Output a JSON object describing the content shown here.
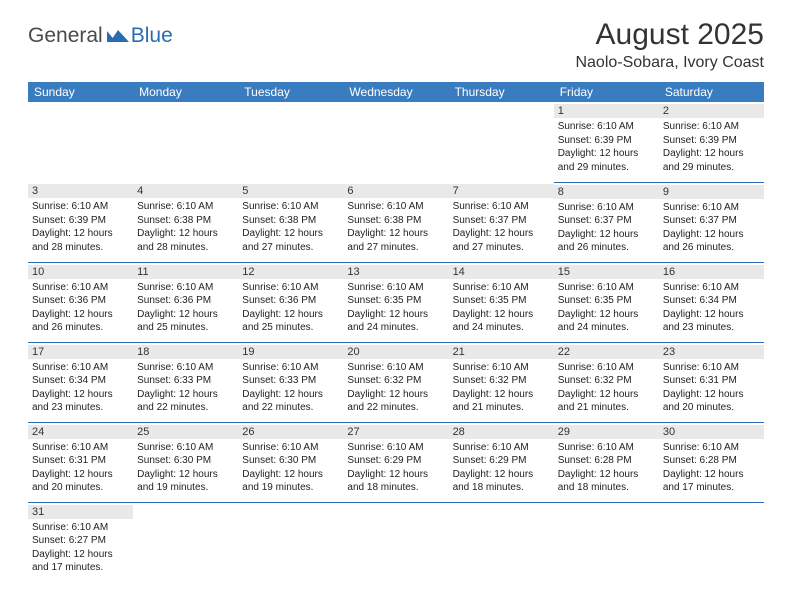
{
  "logo": {
    "text1": "General",
    "text2": "Blue"
  },
  "title": "August 2025",
  "location": "Naolo-Sobara, Ivory Coast",
  "colors": {
    "header_bg": "#3a7cc0",
    "header_text": "#ffffff",
    "cell_border": "#2a6cb3",
    "daynum_bg": "#e9e9e9",
    "logo_accent": "#2a6cb3"
  },
  "weekdays": [
    "Sunday",
    "Monday",
    "Tuesday",
    "Wednesday",
    "Thursday",
    "Friday",
    "Saturday"
  ],
  "weeks": [
    [
      {
        "blank": true
      },
      {
        "blank": true
      },
      {
        "blank": true
      },
      {
        "blank": true
      },
      {
        "blank": true
      },
      {
        "day": "1",
        "sunrise": "Sunrise: 6:10 AM",
        "sunset": "Sunset: 6:39 PM",
        "daylight": "Daylight: 12 hours and 29 minutes."
      },
      {
        "day": "2",
        "sunrise": "Sunrise: 6:10 AM",
        "sunset": "Sunset: 6:39 PM",
        "daylight": "Daylight: 12 hours and 29 minutes."
      }
    ],
    [
      {
        "day": "3",
        "sunrise": "Sunrise: 6:10 AM",
        "sunset": "Sunset: 6:39 PM",
        "daylight": "Daylight: 12 hours and 28 minutes."
      },
      {
        "day": "4",
        "sunrise": "Sunrise: 6:10 AM",
        "sunset": "Sunset: 6:38 PM",
        "daylight": "Daylight: 12 hours and 28 minutes."
      },
      {
        "day": "5",
        "sunrise": "Sunrise: 6:10 AM",
        "sunset": "Sunset: 6:38 PM",
        "daylight": "Daylight: 12 hours and 27 minutes."
      },
      {
        "day": "6",
        "sunrise": "Sunrise: 6:10 AM",
        "sunset": "Sunset: 6:38 PM",
        "daylight": "Daylight: 12 hours and 27 minutes."
      },
      {
        "day": "7",
        "sunrise": "Sunrise: 6:10 AM",
        "sunset": "Sunset: 6:37 PM",
        "daylight": "Daylight: 12 hours and 27 minutes."
      },
      {
        "day": "8",
        "sunrise": "Sunrise: 6:10 AM",
        "sunset": "Sunset: 6:37 PM",
        "daylight": "Daylight: 12 hours and 26 minutes."
      },
      {
        "day": "9",
        "sunrise": "Sunrise: 6:10 AM",
        "sunset": "Sunset: 6:37 PM",
        "daylight": "Daylight: 12 hours and 26 minutes."
      }
    ],
    [
      {
        "day": "10",
        "sunrise": "Sunrise: 6:10 AM",
        "sunset": "Sunset: 6:36 PM",
        "daylight": "Daylight: 12 hours and 26 minutes."
      },
      {
        "day": "11",
        "sunrise": "Sunrise: 6:10 AM",
        "sunset": "Sunset: 6:36 PM",
        "daylight": "Daylight: 12 hours and 25 minutes."
      },
      {
        "day": "12",
        "sunrise": "Sunrise: 6:10 AM",
        "sunset": "Sunset: 6:36 PM",
        "daylight": "Daylight: 12 hours and 25 minutes."
      },
      {
        "day": "13",
        "sunrise": "Sunrise: 6:10 AM",
        "sunset": "Sunset: 6:35 PM",
        "daylight": "Daylight: 12 hours and 24 minutes."
      },
      {
        "day": "14",
        "sunrise": "Sunrise: 6:10 AM",
        "sunset": "Sunset: 6:35 PM",
        "daylight": "Daylight: 12 hours and 24 minutes."
      },
      {
        "day": "15",
        "sunrise": "Sunrise: 6:10 AM",
        "sunset": "Sunset: 6:35 PM",
        "daylight": "Daylight: 12 hours and 24 minutes."
      },
      {
        "day": "16",
        "sunrise": "Sunrise: 6:10 AM",
        "sunset": "Sunset: 6:34 PM",
        "daylight": "Daylight: 12 hours and 23 minutes."
      }
    ],
    [
      {
        "day": "17",
        "sunrise": "Sunrise: 6:10 AM",
        "sunset": "Sunset: 6:34 PM",
        "daylight": "Daylight: 12 hours and 23 minutes."
      },
      {
        "day": "18",
        "sunrise": "Sunrise: 6:10 AM",
        "sunset": "Sunset: 6:33 PM",
        "daylight": "Daylight: 12 hours and 22 minutes."
      },
      {
        "day": "19",
        "sunrise": "Sunrise: 6:10 AM",
        "sunset": "Sunset: 6:33 PM",
        "daylight": "Daylight: 12 hours and 22 minutes."
      },
      {
        "day": "20",
        "sunrise": "Sunrise: 6:10 AM",
        "sunset": "Sunset: 6:32 PM",
        "daylight": "Daylight: 12 hours and 22 minutes."
      },
      {
        "day": "21",
        "sunrise": "Sunrise: 6:10 AM",
        "sunset": "Sunset: 6:32 PM",
        "daylight": "Daylight: 12 hours and 21 minutes."
      },
      {
        "day": "22",
        "sunrise": "Sunrise: 6:10 AM",
        "sunset": "Sunset: 6:32 PM",
        "daylight": "Daylight: 12 hours and 21 minutes."
      },
      {
        "day": "23",
        "sunrise": "Sunrise: 6:10 AM",
        "sunset": "Sunset: 6:31 PM",
        "daylight": "Daylight: 12 hours and 20 minutes."
      }
    ],
    [
      {
        "day": "24",
        "sunrise": "Sunrise: 6:10 AM",
        "sunset": "Sunset: 6:31 PM",
        "daylight": "Daylight: 12 hours and 20 minutes."
      },
      {
        "day": "25",
        "sunrise": "Sunrise: 6:10 AM",
        "sunset": "Sunset: 6:30 PM",
        "daylight": "Daylight: 12 hours and 19 minutes."
      },
      {
        "day": "26",
        "sunrise": "Sunrise: 6:10 AM",
        "sunset": "Sunset: 6:30 PM",
        "daylight": "Daylight: 12 hours and 19 minutes."
      },
      {
        "day": "27",
        "sunrise": "Sunrise: 6:10 AM",
        "sunset": "Sunset: 6:29 PM",
        "daylight": "Daylight: 12 hours and 18 minutes."
      },
      {
        "day": "28",
        "sunrise": "Sunrise: 6:10 AM",
        "sunset": "Sunset: 6:29 PM",
        "daylight": "Daylight: 12 hours and 18 minutes."
      },
      {
        "day": "29",
        "sunrise": "Sunrise: 6:10 AM",
        "sunset": "Sunset: 6:28 PM",
        "daylight": "Daylight: 12 hours and 18 minutes."
      },
      {
        "day": "30",
        "sunrise": "Sunrise: 6:10 AM",
        "sunset": "Sunset: 6:28 PM",
        "daylight": "Daylight: 12 hours and 17 minutes."
      }
    ],
    [
      {
        "day": "31",
        "sunrise": "Sunrise: 6:10 AM",
        "sunset": "Sunset: 6:27 PM",
        "daylight": "Daylight: 12 hours and 17 minutes."
      },
      {
        "blank": true
      },
      {
        "blank": true
      },
      {
        "blank": true
      },
      {
        "blank": true
      },
      {
        "blank": true
      },
      {
        "blank": true
      }
    ]
  ]
}
